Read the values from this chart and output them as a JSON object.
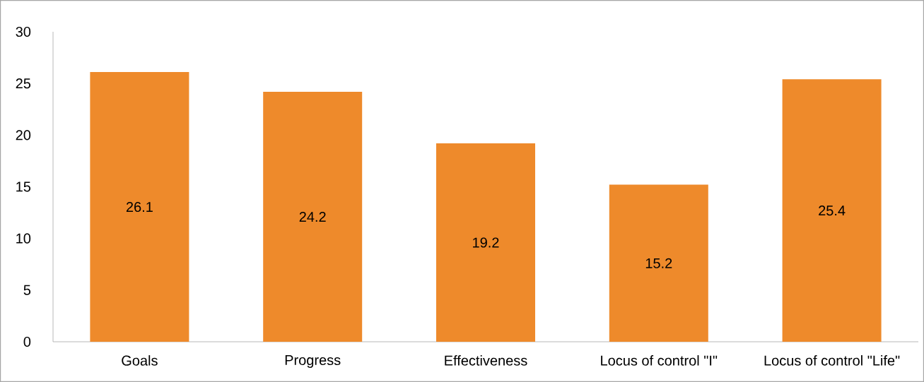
{
  "chart_data": {
    "type": "bar",
    "categories": [
      "Goals",
      "Progress",
      "Effectiveness",
      "Locus of control \"I\"",
      "Locus of control \"Life\""
    ],
    "values": [
      26.1,
      24.2,
      19.2,
      15.2,
      25.4
    ],
    "color": "#ee8a2b",
    "ylim": [
      0,
      30
    ],
    "yticks": [
      0,
      5,
      10,
      15,
      20,
      25,
      30
    ],
    "data_labels": true,
    "grid": false
  }
}
